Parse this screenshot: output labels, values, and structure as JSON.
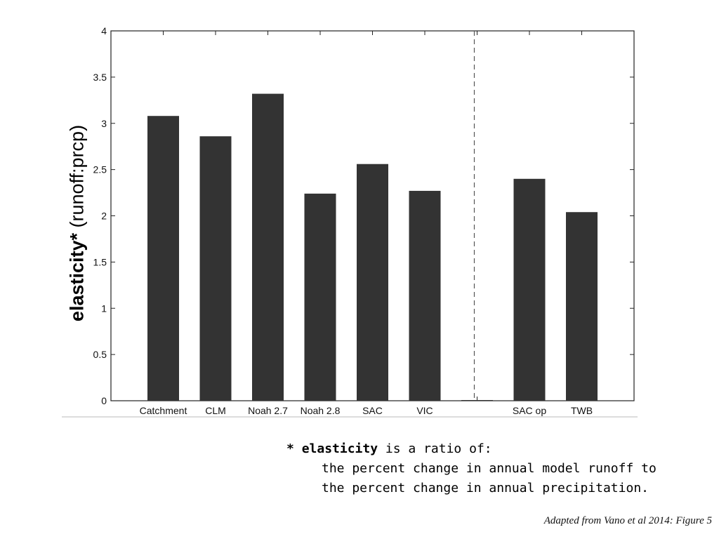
{
  "chart_data": {
    "type": "bar",
    "categories": [
      "Catchment",
      "CLM",
      "Noah 2.7",
      "Noah 2.8",
      "SAC",
      "VIC",
      "",
      "SAC op",
      "TWB"
    ],
    "values": [
      3.08,
      2.86,
      3.32,
      2.24,
      2.56,
      2.27,
      0.0,
      2.4,
      2.04
    ],
    "ylim": [
      0,
      4
    ],
    "yticks": [
      0,
      0.5,
      1,
      1.5,
      2,
      2.5,
      3,
      3.5,
      4
    ],
    "ytick_labels": [
      "0",
      "0.5",
      "1",
      "1.5",
      "2",
      "2.5",
      "3",
      "3.5",
      "4"
    ],
    "ylabel_bold": "elasticity*",
    "ylabel_rest": " (runoff:prcp)",
    "xlabel": "",
    "title": "",
    "grid": false,
    "bar_color": "#333333",
    "separator": "dashed vertical line between VIC and SAC op"
  },
  "footnote": {
    "star": "* ",
    "term": "elasticity",
    "line1_rest": " is a ratio of:",
    "line2": "the percent change in annual model runoff to",
    "line3": "the percent change in annual precipitation."
  },
  "credit": "Adapted from Vano et al 2014: Figure 5"
}
